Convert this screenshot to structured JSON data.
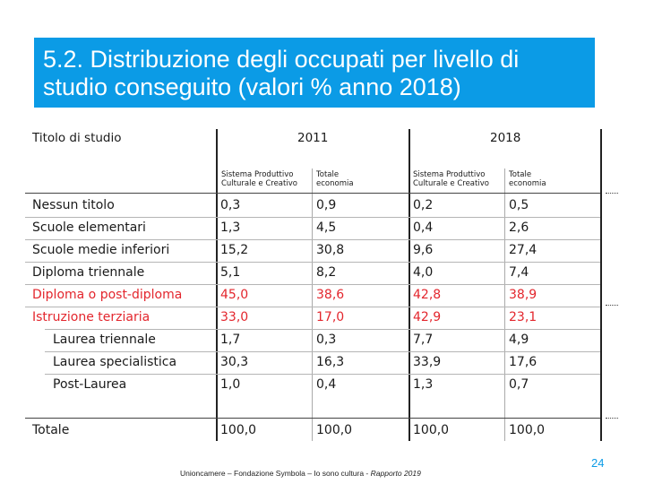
{
  "title": {
    "line1": "5.2. Distribuzione degli occupati per livello di",
    "line2": "studio conseguito (valori % anno 2018)"
  },
  "table": {
    "label_header": "Titolo di studio",
    "year_2011": "2011",
    "year_2018": "2018",
    "col_sistema_line1": "Sistema Produttivo",
    "col_sistema_line2": "Culturale e Creativo",
    "col_totale_line1": "Totale",
    "col_totale_line2": "economia",
    "rows": [
      {
        "label": "Nessun titolo",
        "v": [
          "0,3",
          "0,9",
          "0,2",
          "0,5"
        ]
      },
      {
        "label": "Scuole elementari",
        "v": [
          "1,3",
          "4,5",
          "0,4",
          "2,6"
        ]
      },
      {
        "label": "Scuole medie inferiori",
        "v": [
          "15,2",
          "30,8",
          "9,6",
          "27,4"
        ]
      },
      {
        "label": "Diploma triennale",
        "v": [
          "5,1",
          "8,2",
          "4,0",
          "7,4"
        ]
      },
      {
        "label": "Diploma o post-diploma",
        "v": [
          "45,0",
          "38,6",
          "42,8",
          "38,9"
        ]
      },
      {
        "label": "Istruzione terziaria",
        "v": [
          "33,0",
          "17,0",
          "42,9",
          "23,1"
        ]
      },
      {
        "label": "Laurea triennale",
        "v": [
          "1,7",
          "0,3",
          "7,7",
          "4,9"
        ]
      },
      {
        "label": "Laurea specialistica",
        "v": [
          "30,3",
          "16,3",
          "33,9",
          "17,6"
        ]
      },
      {
        "label": "Post-Laurea",
        "v": [
          "1,0",
          "0,4",
          "1,3",
          "0,7"
        ]
      },
      {
        "label": "Totale",
        "v": [
          "100,0",
          "100,0",
          "100,0",
          "100,0"
        ]
      }
    ]
  },
  "footer": {
    "text": "Unioncamere – Fondazione Symbola – Io sono cultura - ",
    "italic": "Rapporto 2019"
  },
  "page_number": "24"
}
